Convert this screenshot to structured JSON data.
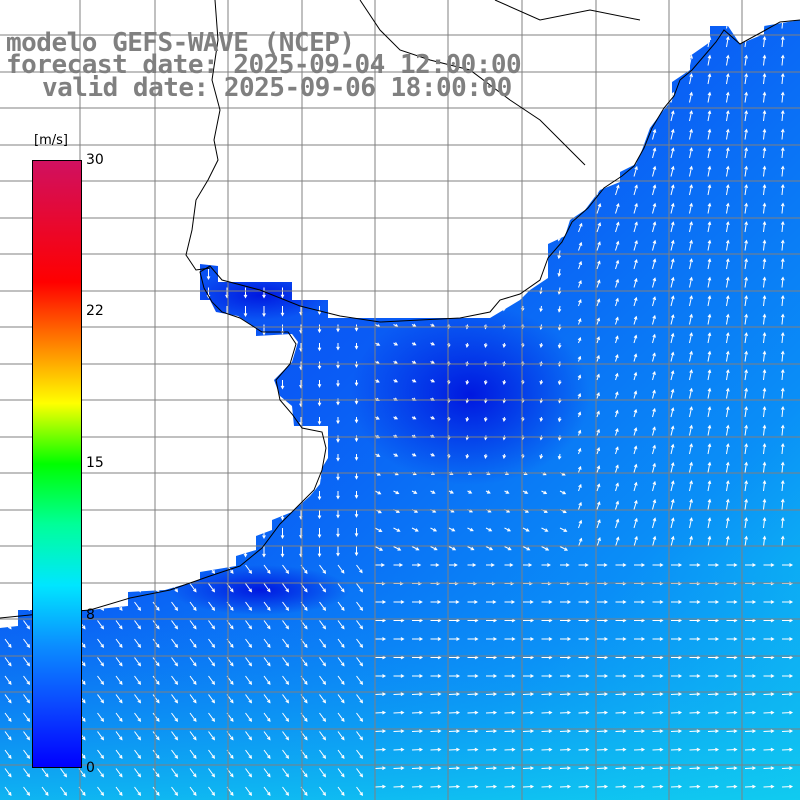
{
  "title": {
    "line1": "modelo GEFS-WAVE (NCEP)",
    "line2": "forecast date: 2025-09-04 12:00:00",
    "line3": "valid date: 2025-09-06 18:00:00"
  },
  "colorbar": {
    "unit": "[m/s]",
    "ticks": [
      "30",
      "22",
      "15",
      "8",
      "0"
    ],
    "tick_values": [
      30,
      22,
      15,
      8,
      0
    ],
    "range": [
      0,
      30
    ],
    "colors": [
      "#0000ff",
      "#0b8dff",
      "#00e6ff",
      "#00ff00",
      "#ffff00",
      "#ff9900",
      "#ff0000",
      "#d01060"
    ]
  },
  "map": {
    "variable": "wind speed and direction",
    "land_color": "#ffffff",
    "grid_color": "#808080",
    "coastline_color": "#000000",
    "arrow_color": "#ffffff"
  }
}
